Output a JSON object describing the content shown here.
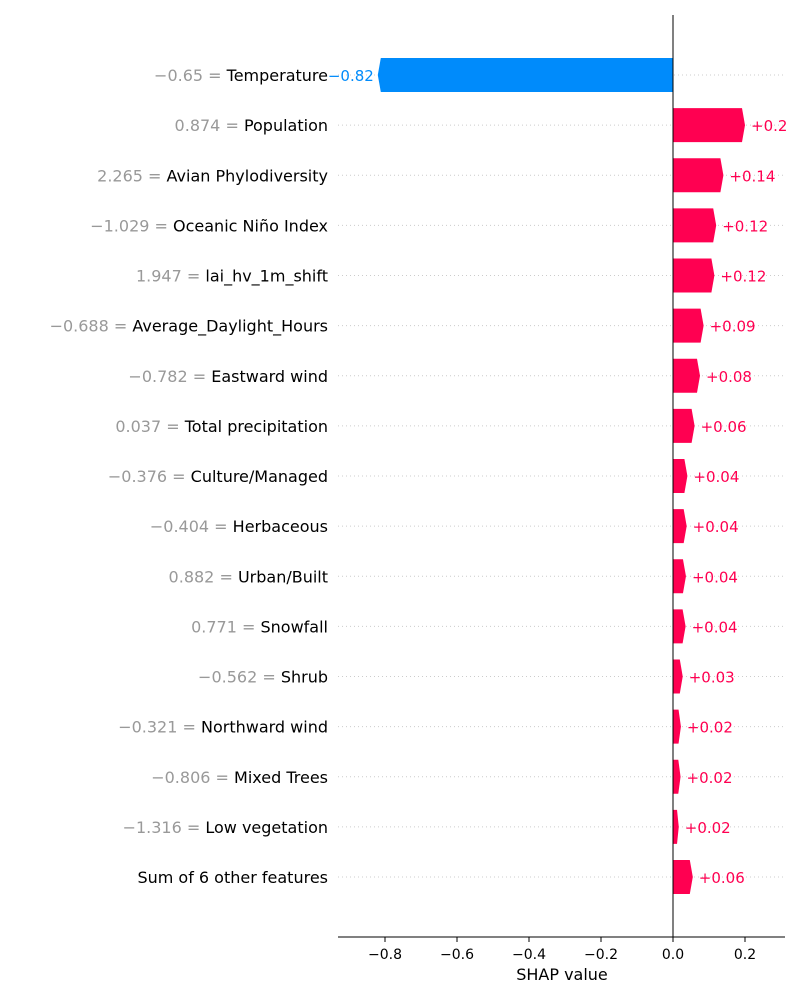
{
  "chart_data": {
    "type": "bar",
    "orientation": "horizontal",
    "title": "",
    "xlabel": "SHAP value",
    "ylabel": "",
    "xlim": [
      -0.93,
      0.31
    ],
    "xticks": [
      {
        "value": -0.8,
        "label": "−0.8"
      },
      {
        "value": -0.6,
        "label": "−0.6"
      },
      {
        "value": -0.4,
        "label": "−0.4"
      },
      {
        "value": -0.2,
        "label": "−0.2"
      },
      {
        "value": 0.0,
        "label": "0.0"
      },
      {
        "value": 0.2,
        "label": "0.2"
      }
    ],
    "grid": "horizontal dotted row guides",
    "legend": "none",
    "colors": {
      "positive": "#ff0051",
      "negative": "#008bfb",
      "feature_value": "#999999",
      "feature_name": "#000000",
      "guide": "#cccccc"
    },
    "features": [
      {
        "value_text": "−0.65",
        "name": "Temperature",
        "shap": -0.82,
        "label": "−0.82"
      },
      {
        "value_text": "0.874",
        "name": "Population",
        "shap": 0.2,
        "label": "+0.2"
      },
      {
        "value_text": "2.265",
        "name": "Avian Phylodiversity",
        "shap": 0.14,
        "label": "+0.14"
      },
      {
        "value_text": "−1.029",
        "name": "Oceanic Niño Index",
        "shap": 0.12,
        "label": "+0.12"
      },
      {
        "value_text": "1.947",
        "name": "lai_hv_1m_shift",
        "shap": 0.115,
        "label": "+0.12"
      },
      {
        "value_text": "−0.688",
        "name": "Average_Daylight_Hours",
        "shap": 0.085,
        "label": "+0.09"
      },
      {
        "value_text": "−0.782",
        "name": "Eastward wind",
        "shap": 0.075,
        "label": "+0.08"
      },
      {
        "value_text": "0.037",
        "name": "Total precipitation",
        "shap": 0.06,
        "label": "+0.06"
      },
      {
        "value_text": "−0.376",
        "name": "Culture/Managed",
        "shap": 0.04,
        "label": "+0.04"
      },
      {
        "value_text": "−0.404",
        "name": "Herbaceous",
        "shap": 0.038,
        "label": "+0.04"
      },
      {
        "value_text": "0.882",
        "name": "Urban/Built",
        "shap": 0.036,
        "label": "+0.04"
      },
      {
        "value_text": "0.771",
        "name": "Snowfall",
        "shap": 0.035,
        "label": "+0.04"
      },
      {
        "value_text": "−0.562",
        "name": "Shrub",
        "shap": 0.027,
        "label": "+0.03"
      },
      {
        "value_text": "−0.321",
        "name": "Northward wind",
        "shap": 0.022,
        "label": "+0.02"
      },
      {
        "value_text": "−0.806",
        "name": "Mixed Trees",
        "shap": 0.021,
        "label": "+0.02"
      },
      {
        "value_text": "−1.316",
        "name": "Low vegetation",
        "shap": 0.016,
        "label": "+0.02"
      },
      {
        "value_text": "",
        "name": "Sum of 6 other features",
        "shap": 0.055,
        "label": "+0.06"
      }
    ]
  }
}
